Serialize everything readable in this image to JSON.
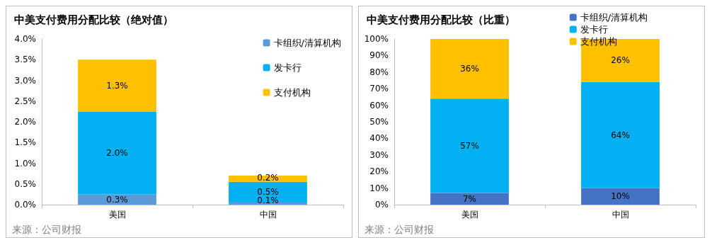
{
  "chart_data": [
    {
      "type": "bar",
      "title": "中美支付费用分配比较（绝对值）",
      "categories": [
        "美国",
        "中国"
      ],
      "stacked": true,
      "legend": "top right",
      "grid": false,
      "ylim": [
        0,
        4
      ],
      "yticks": [
        {
          "value": 0,
          "label": "0.0%"
        },
        {
          "value": 0.5,
          "label": "0.5%"
        },
        {
          "value": 1,
          "label": "1.0%"
        },
        {
          "value": 1.5,
          "label": "1.5%"
        },
        {
          "value": 2,
          "label": "2.0%"
        },
        {
          "value": 2.5,
          "label": "2.5%"
        },
        {
          "value": 3,
          "label": "3.0%"
        },
        {
          "value": 3.5,
          "label": "3.5%"
        },
        {
          "value": 4,
          "label": "4.0%"
        }
      ],
      "annotations": [
        "来源：公司财报"
      ],
      "series": [
        {
          "name": "卡组织/清算机构",
          "color": "#5b9bd5",
          "values": [
            0.25,
            0.05
          ],
          "value_labels": [
            "0.3%",
            "0.1%"
          ]
        },
        {
          "name": "发卡行",
          "color": "#00b0f0",
          "values": [
            2.0,
            0.5
          ],
          "value_labels": [
            "2.0%",
            "0.5%"
          ]
        },
        {
          "name": "支付机构",
          "color": "#ffc000",
          "values": [
            1.25,
            0.15
          ],
          "value_labels": [
            "1.3%",
            "0.2%"
          ]
        }
      ]
    },
    {
      "type": "bar",
      "title": "中美支付费用分配比较（比重）",
      "categories": [
        "美国",
        "中国"
      ],
      "stacked": true,
      "legend": "top",
      "grid": false,
      "ylim": [
        0,
        100
      ],
      "yticks": [
        {
          "value": 0,
          "label": "0%"
        },
        {
          "value": 10,
          "label": "10%"
        },
        {
          "value": 20,
          "label": "20%"
        },
        {
          "value": 30,
          "label": "30%"
        },
        {
          "value": 40,
          "label": "40%"
        },
        {
          "value": 50,
          "label": "50%"
        },
        {
          "value": 60,
          "label": "60%"
        },
        {
          "value": 70,
          "label": "70%"
        },
        {
          "value": 80,
          "label": "80%"
        },
        {
          "value": 90,
          "label": "90%"
        },
        {
          "value": 100,
          "label": "100%"
        }
      ],
      "annotations": [
        "来源：公司财报"
      ],
      "series": [
        {
          "name": "卡组织/清算机构",
          "color": "#4472c4",
          "values": [
            7,
            10
          ],
          "value_labels": [
            "7%",
            "10%"
          ]
        },
        {
          "name": "发卡行",
          "color": "#00b0f0",
          "values": [
            57,
            64
          ],
          "value_labels": [
            "57%",
            "64%"
          ]
        },
        {
          "name": "支付机构",
          "color": "#ffc000",
          "values": [
            36,
            26
          ],
          "value_labels": [
            "36%",
            "26%"
          ]
        }
      ]
    }
  ]
}
